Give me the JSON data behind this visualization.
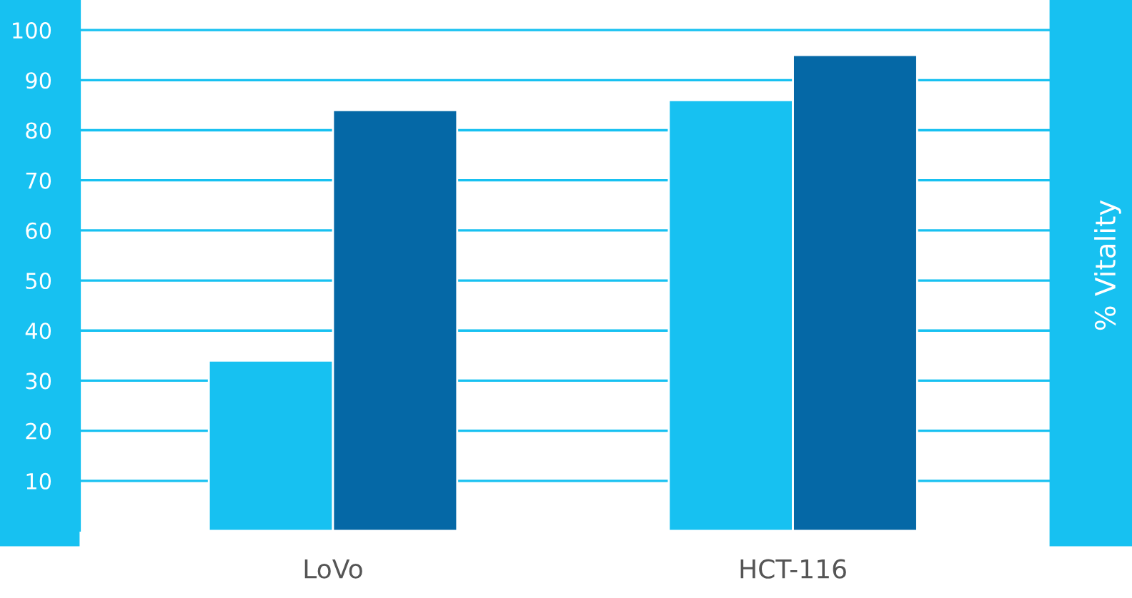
{
  "chart_data": {
    "type": "bar",
    "categories": [
      "LoVo",
      "HCT-116"
    ],
    "series": [
      {
        "color": "#17c1f1",
        "values": [
          34,
          86
        ]
      },
      {
        "color": "#0568a6",
        "values": [
          84,
          95
        ]
      }
    ],
    "ylabel": "% Vitality",
    "ylim": [
      0,
      106
    ],
    "yticks": [
      10,
      20,
      30,
      40,
      50,
      60,
      70,
      80,
      90,
      100
    ],
    "grid": "y"
  }
}
